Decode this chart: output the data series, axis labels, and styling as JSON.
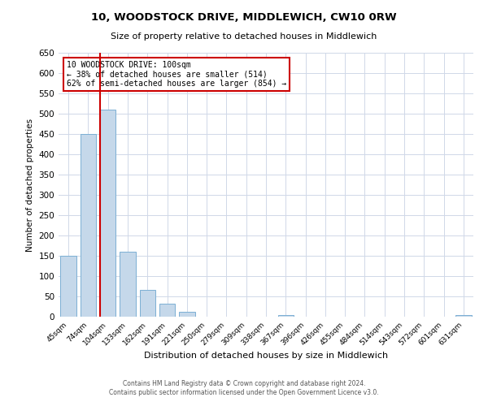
{
  "title": "10, WOODSTOCK DRIVE, MIDDLEWICH, CW10 0RW",
  "subtitle": "Size of property relative to detached houses in Middlewich",
  "xlabel": "Distribution of detached houses by size in Middlewich",
  "ylabel": "Number of detached properties",
  "bar_labels": [
    "45sqm",
    "74sqm",
    "104sqm",
    "133sqm",
    "162sqm",
    "191sqm",
    "221sqm",
    "250sqm",
    "279sqm",
    "309sqm",
    "338sqm",
    "367sqm",
    "396sqm",
    "426sqm",
    "455sqm",
    "484sqm",
    "514sqm",
    "543sqm",
    "572sqm",
    "601sqm",
    "631sqm"
  ],
  "bar_values": [
    150,
    450,
    510,
    160,
    67,
    33,
    13,
    0,
    0,
    0,
    0,
    5,
    0,
    0,
    0,
    0,
    0,
    0,
    0,
    0,
    5
  ],
  "bar_color": "#c5d8ea",
  "bar_edge_color": "#7bafd4",
  "ylim": [
    0,
    650
  ],
  "yticks": [
    0,
    50,
    100,
    150,
    200,
    250,
    300,
    350,
    400,
    450,
    500,
    550,
    600,
    650
  ],
  "property_line_index": 2,
  "property_line_color": "#cc0000",
  "annotation_title": "10 WOODSTOCK DRIVE: 100sqm",
  "annotation_line1": "← 38% of detached houses are smaller (514)",
  "annotation_line2": "62% of semi-detached houses are larger (854) →",
  "annotation_box_color": "#ffffff",
  "annotation_box_edgecolor": "#cc0000",
  "footer1": "Contains HM Land Registry data © Crown copyright and database right 2024.",
  "footer2": "Contains public sector information licensed under the Open Government Licence v3.0.",
  "bg_color": "#ffffff",
  "grid_color": "#d0d8e8"
}
